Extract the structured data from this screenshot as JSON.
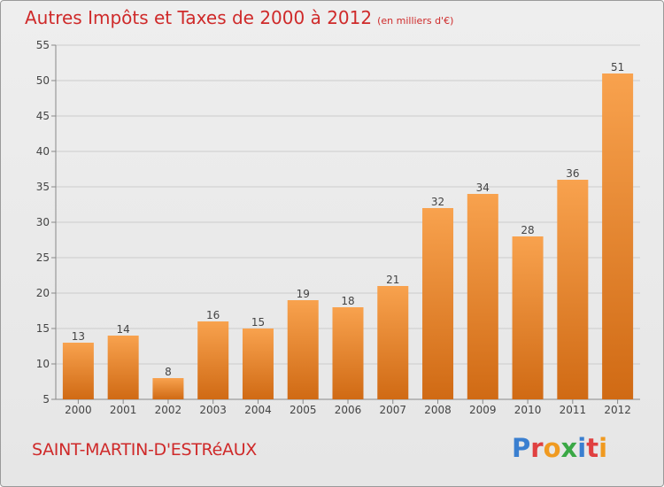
{
  "title": "Autres Impôts et Taxes de 2000 à 2012",
  "unit_note": "(en milliers d'€)",
  "commune": "SAINT-MARTIN-D'ESTRéAUX",
  "logo": {
    "p": "P",
    "r": "r",
    "o": "o",
    "x": "x",
    "i1": "i",
    "t": "t",
    "i2": "i"
  },
  "colors": {
    "bar_light": "#f8a24e",
    "bar_dark": "#d06a14",
    "title": "#cf2a2a",
    "grid": "#cccccc"
  },
  "chart_data": {
    "type": "bar",
    "categories": [
      "2000",
      "2001",
      "2002",
      "2003",
      "2004",
      "2005",
      "2006",
      "2007",
      "2008",
      "2009",
      "2010",
      "2011",
      "2012"
    ],
    "values": [
      13,
      14,
      8,
      16,
      15,
      19,
      18,
      21,
      32,
      34,
      28,
      36,
      51
    ],
    "ylim": [
      5,
      55
    ],
    "yticks": [
      5,
      10,
      15,
      20,
      25,
      30,
      35,
      40,
      45,
      50,
      55
    ],
    "grid": true,
    "data_labels": true
  }
}
